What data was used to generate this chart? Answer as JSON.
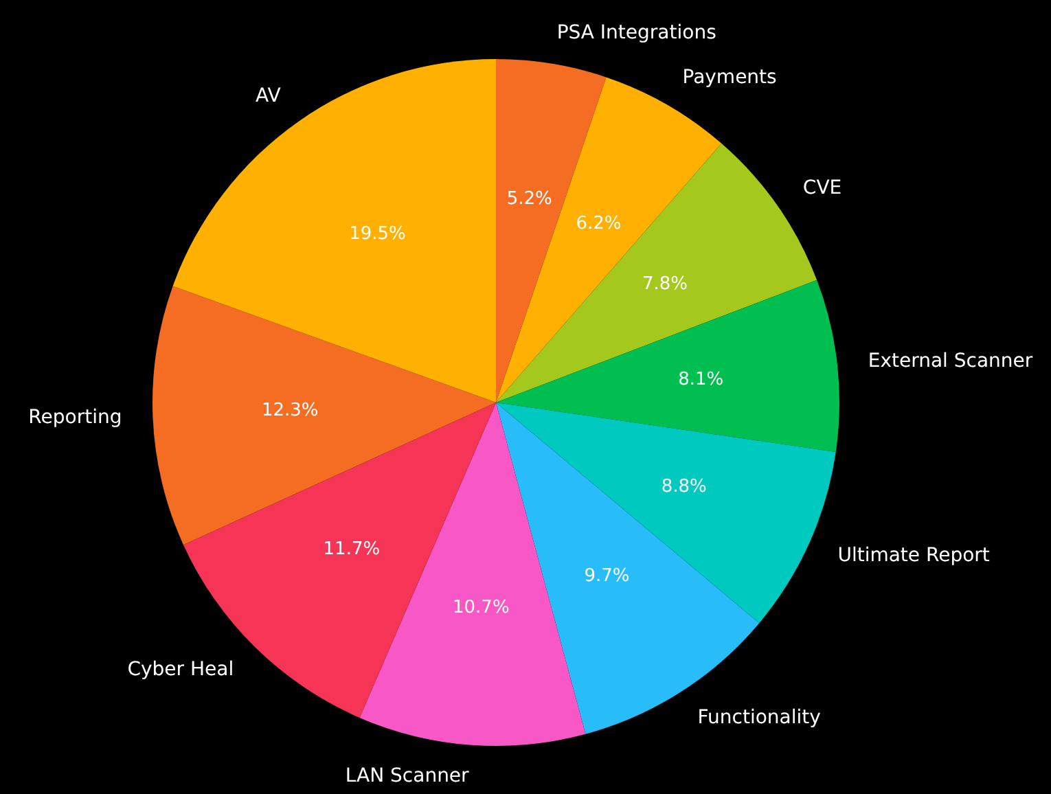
{
  "chart_data": {
    "type": "pie",
    "categories": [
      "PSA Integrations",
      "Payments",
      "CVE",
      "External Scanner",
      "Ultimate Report",
      "Functionality",
      "LAN Scanner",
      "Cyber Heal",
      "Reporting",
      "AV"
    ],
    "values": [
      5.2,
      6.2,
      7.8,
      8.1,
      8.8,
      9.7,
      10.7,
      11.7,
      12.3,
      19.5
    ],
    "value_labels": [
      "5.2%",
      "6.2%",
      "7.8%",
      "8.1%",
      "8.8%",
      "9.7%",
      "10.7%",
      "11.7%",
      "12.3%",
      "19.5%"
    ],
    "colors": [
      "#f46d22",
      "#ffb000",
      "#a4c91c",
      "#00bf50",
      "#00c9c0",
      "#28bdf9",
      "#f857c6",
      "#f63456",
      "#f46d22",
      "#ffb000"
    ]
  }
}
